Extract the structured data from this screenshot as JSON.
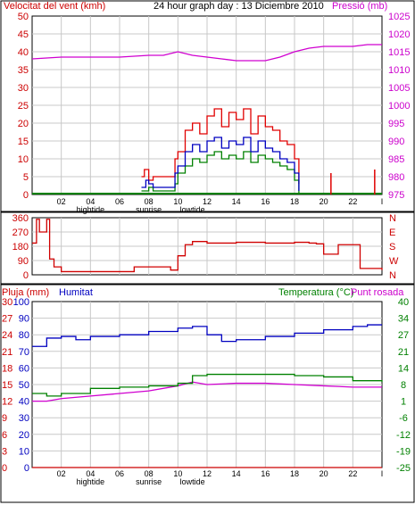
{
  "chart_data": [
    {
      "type": "line",
      "title": "24 hour graph day : 13 Diciembre 2010",
      "ylabel_left": "Velocitat del vent (kmh)",
      "ylabel_right": "Pressió (mb)",
      "colors": {
        "wind": "#e00000",
        "wind_avg": "#0000c0",
        "gust_low": "#008000",
        "pressure": "#d000d0",
        "axis_left": "#cc0000",
        "axis_right": "#cc00cc"
      },
      "left_ticks": [
        "0",
        "5",
        "10",
        "15",
        "20",
        "25",
        "30",
        "35",
        "40",
        "45",
        "50"
      ],
      "right_ticks": [
        "975",
        "980",
        "985",
        "990",
        "995",
        "1000",
        "1005",
        "1010",
        "1015",
        "1020",
        "1025"
      ],
      "x_labels": [
        "02",
        "04",
        "06",
        "08",
        "10",
        "12",
        "14",
        "16",
        "18",
        "20",
        "22",
        "I"
      ],
      "x_sublabels": [
        {
          "hour": 4,
          "text": "hightide"
        },
        {
          "hour": 8,
          "text": "sunrise"
        },
        {
          "hour": 11,
          "text": "lowtide"
        }
      ],
      "ylim": [
        0,
        50
      ],
      "ylim_right": [
        975,
        1025
      ],
      "pressure": {
        "x": [
          0,
          2,
          4,
          6,
          8,
          9,
          10,
          11,
          12,
          13,
          14,
          15,
          16,
          17,
          18,
          19,
          20,
          21,
          22,
          23,
          24
        ],
        "y": [
          1013,
          1013.5,
          1013.5,
          1013.5,
          1014,
          1014,
          1015,
          1014,
          1013.5,
          1013,
          1012.5,
          1012.5,
          1012.5,
          1013.5,
          1015,
          1016,
          1016.5,
          1016.5,
          1016.5,
          1017,
          1017
        ]
      },
      "wind_gust": {
        "x": [
          7.5,
          7.7,
          8,
          8.3,
          9.8,
          10,
          10.5,
          11,
          11.5,
          12,
          12.5,
          13,
          13.5,
          14,
          14.5,
          15,
          15.5,
          16,
          16.5,
          17,
          17.5,
          18,
          18.3
        ],
        "y": [
          5,
          7,
          4,
          5,
          10,
          12,
          18,
          20,
          17,
          22,
          24,
          19,
          23,
          21,
          24,
          17,
          22,
          19,
          18,
          15,
          14,
          10,
          3
        ]
      },
      "wind_avg": {
        "x": [
          7.5,
          7.8,
          8,
          8.3,
          9.8,
          10,
          10.5,
          11,
          11.5,
          12,
          12.5,
          13,
          13.5,
          14,
          14.5,
          15,
          15.5,
          16,
          16.5,
          17,
          17.5,
          18,
          18.3
        ],
        "y": [
          2,
          4,
          3,
          2,
          6,
          8,
          12,
          14,
          12,
          15,
          16,
          13,
          15,
          14,
          16,
          12,
          15,
          13,
          12,
          10,
          9,
          6,
          1
        ]
      },
      "wind_low": {
        "x": [
          7.5,
          8,
          8.3,
          9.8,
          10,
          10.5,
          11,
          11.5,
          12,
          12.5,
          13,
          13.5,
          14,
          14.5,
          15,
          15.5,
          16,
          16.5,
          17,
          17.5,
          18,
          18.3
        ],
        "y": [
          1,
          2,
          1,
          3,
          6,
          8,
          10,
          9,
          11,
          12,
          10,
          11,
          10,
          12,
          9,
          11,
          10,
          9,
          8,
          7,
          4,
          0
        ]
      },
      "wind_spikes": [
        {
          "hour": 20.5,
          "value": 6
        },
        {
          "hour": 23.5,
          "value": 7
        }
      ]
    },
    {
      "type": "line",
      "series_name": "wind direction",
      "left_ticks": [
        "0",
        "90",
        "180",
        "270",
        "360"
      ],
      "right_ticks": [
        "N",
        "W",
        "S",
        "E",
        "N"
      ],
      "ylim": [
        0,
        360
      ],
      "x": [
        0,
        0.3,
        0.5,
        1,
        1.2,
        1.5,
        2,
        4,
        6,
        7,
        8,
        9,
        9.5,
        10,
        10.5,
        11,
        12,
        14,
        16,
        18,
        19,
        19.5,
        20,
        21,
        22,
        22.5,
        23,
        24
      ],
      "y": [
        200,
        350,
        270,
        350,
        100,
        50,
        20,
        20,
        20,
        50,
        50,
        50,
        30,
        120,
        190,
        210,
        200,
        205,
        200,
        205,
        200,
        195,
        130,
        190,
        190,
        40,
        40,
        30
      ]
    },
    {
      "type": "line",
      "labels": {
        "rain": "Pluja (mm)",
        "humidity": "Humitat",
        "temperature": "Temperatura (°C)",
        "dewpoint": "Punt rosada"
      },
      "colors": {
        "rain": "#cc0000",
        "humidity": "#0000c0",
        "temperature": "#008000",
        "dewpoint": "#d000d0"
      },
      "rain_ticks": [
        "0",
        "3",
        "6",
        "9",
        "12",
        "15",
        "18",
        "21",
        "24",
        "27",
        "30"
      ],
      "humidity_ticks": [
        "0",
        "10",
        "20",
        "30",
        "40",
        "50",
        "60",
        "70",
        "80",
        "90",
        "100"
      ],
      "temp_ticks": [
        "-25",
        "-19",
        "-12",
        "-6",
        "1",
        "8",
        "14",
        "21",
        "27",
        "34",
        "40"
      ],
      "x_labels": [
        "02",
        "04",
        "06",
        "08",
        "10",
        "12",
        "14",
        "16",
        "18",
        "20",
        "22",
        "I"
      ],
      "x_sublabels": [
        {
          "hour": 4,
          "text": "hightide"
        },
        {
          "hour": 8,
          "text": "sunrise"
        },
        {
          "hour": 11,
          "text": "lowtide"
        }
      ],
      "rain": {
        "x": [
          0,
          24
        ],
        "y": [
          0,
          0
        ]
      },
      "humidity": {
        "x": [
          0,
          1,
          2,
          3,
          4,
          6,
          8,
          10,
          11,
          12,
          13,
          14,
          16,
          18,
          20,
          22,
          23,
          24
        ],
        "y": [
          73,
          78,
          79,
          77,
          79,
          80,
          82,
          84,
          85,
          80,
          76,
          77,
          79,
          81,
          83,
          85,
          86,
          86
        ]
      },
      "temperature": {
        "x": [
          0,
          1,
          2,
          4,
          6,
          8,
          10,
          11,
          12,
          14,
          16,
          18,
          20,
          22,
          24
        ],
        "y": [
          4,
          3,
          4,
          6,
          6.5,
          7,
          8,
          11,
          11.5,
          11.5,
          11.5,
          11,
          10.5,
          9,
          8.5
        ]
      },
      "dewpoint": {
        "x": [
          0,
          1,
          2,
          4,
          6,
          8,
          10,
          11,
          12,
          14,
          16,
          18,
          20,
          22,
          24
        ],
        "y": [
          1,
          1,
          2,
          3,
          4,
          5,
          7,
          8.5,
          7.5,
          8,
          8,
          7.5,
          7,
          6.5,
          6.5
        ]
      }
    }
  ]
}
